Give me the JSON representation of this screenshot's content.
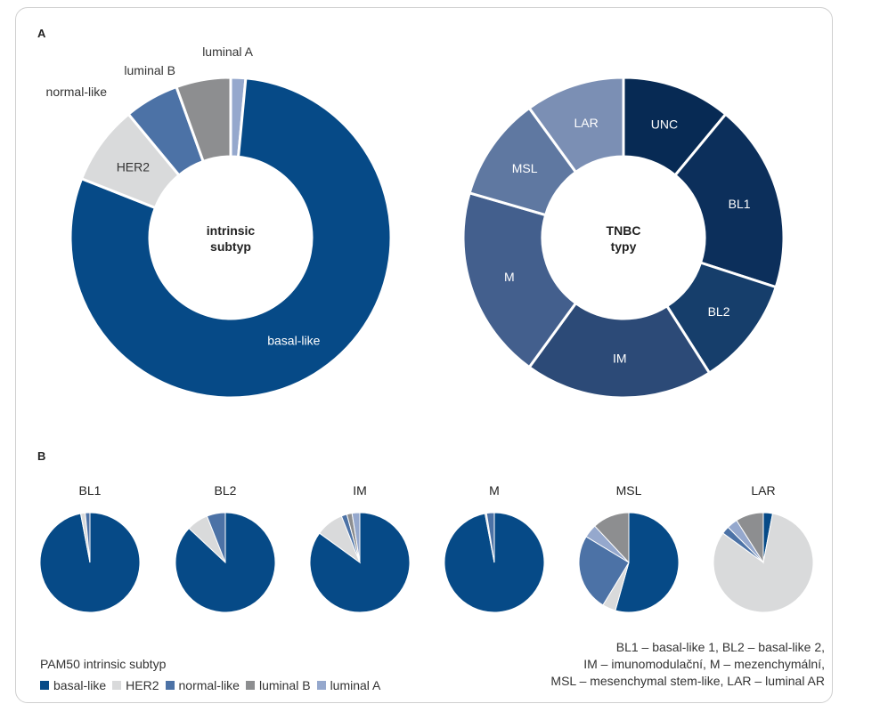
{
  "panel_a_label": "A",
  "panel_b_label": "B",
  "colors": {
    "basal-like": "#064a87",
    "HER2": "#d9dadb",
    "normal-like": "#4c72a6",
    "luminal B": "#8d8e90",
    "luminal A": "#95a8cd",
    "UNC": "#072a54",
    "BL1": "#0c2f5b",
    "BL2": "#163e6b",
    "IM": "#2c4a77",
    "M": "#435f8d",
    "MSL": "#5f78a1",
    "LAR": "#7b8fb4"
  },
  "chart_data": [
    {
      "type": "pie",
      "donut": true,
      "center_label": [
        "intrinsic",
        "subtyp"
      ],
      "slices": [
        {
          "label": "luminal A",
          "value": 1.5
        },
        {
          "label": "basal-like",
          "value": 79.5
        },
        {
          "label": "HER2",
          "value": 8
        },
        {
          "label": "normal-like",
          "value": 5.5
        },
        {
          "label": "luminal B",
          "value": 5.5
        }
      ]
    },
    {
      "type": "pie",
      "donut": true,
      "center_label": [
        "TNBC",
        "typy"
      ],
      "slices": [
        {
          "label": "UNC",
          "value": 11
        },
        {
          "label": "BL1",
          "value": 19
        },
        {
          "label": "BL2",
          "value": 11
        },
        {
          "label": "IM",
          "value": 19
        },
        {
          "label": "M",
          "value": 19.5
        },
        {
          "label": "MSL",
          "value": 10.5
        },
        {
          "label": "LAR",
          "value": 10
        }
      ]
    },
    {
      "type": "pie",
      "title": "BL1",
      "slices": [
        {
          "label": "basal-like",
          "value": 97
        },
        {
          "label": "HER2",
          "value": 1.5
        },
        {
          "label": "normal-like",
          "value": 1.5
        }
      ]
    },
    {
      "type": "pie",
      "title": "BL2",
      "slices": [
        {
          "label": "basal-like",
          "value": 87
        },
        {
          "label": "HER2",
          "value": 7
        },
        {
          "label": "normal-like",
          "value": 6
        }
      ]
    },
    {
      "type": "pie",
      "title": "IM",
      "slices": [
        {
          "label": "basal-like",
          "value": 85
        },
        {
          "label": "HER2",
          "value": 9
        },
        {
          "label": "normal-like",
          "value": 1.8
        },
        {
          "label": "luminal B",
          "value": 1.7
        },
        {
          "label": "luminal A",
          "value": 2.5
        }
      ]
    },
    {
      "type": "pie",
      "title": "M",
      "slices": [
        {
          "label": "basal-like",
          "value": 97
        },
        {
          "label": "HER2",
          "value": 0.5
        },
        {
          "label": "normal-like",
          "value": 2.5
        }
      ]
    },
    {
      "type": "pie",
      "title": "MSL",
      "slices": [
        {
          "label": "basal-like",
          "value": 50
        },
        {
          "label": "HER2",
          "value": 4
        },
        {
          "label": "normal-like",
          "value": 23
        },
        {
          "label": "luminal A",
          "value": 4
        },
        {
          "label": "luminal B",
          "value": 11
        }
      ]
    },
    {
      "type": "pie",
      "title": "LAR",
      "slices": [
        {
          "label": "basal-like",
          "value": 3
        },
        {
          "label": "HER2",
          "value": 82
        },
        {
          "label": "normal-like",
          "value": 2.5
        },
        {
          "label": "luminal A",
          "value": 3.5
        },
        {
          "label": "luminal B",
          "value": 9
        }
      ]
    }
  ],
  "legend": {
    "title": "PAM50 intrinsic subtyp",
    "items": [
      {
        "label": "basal-like"
      },
      {
        "label": "HER2"
      },
      {
        "label": "normal-like"
      },
      {
        "label": "luminal B"
      },
      {
        "label": "luminal A"
      }
    ]
  },
  "abbreviations": [
    "BL1 – basal-like 1, BL2 – basal-like 2,",
    "IM – imunomodulační, M – mezenchymální,",
    "MSL – mesenchymal stem-like, LAR – luminal AR"
  ]
}
